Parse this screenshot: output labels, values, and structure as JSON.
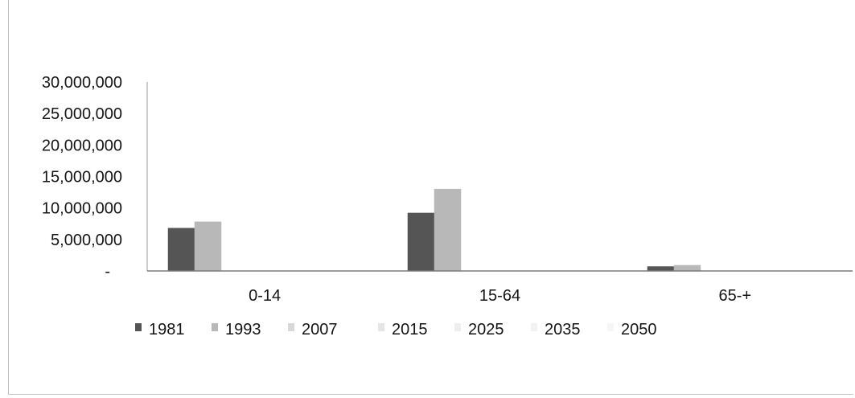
{
  "chart_data": {
    "type": "bar",
    "title": "",
    "xlabel": "",
    "ylabel": "",
    "categories": [
      "0-14",
      "15-64",
      "65-+"
    ],
    "ylim": [
      0,
      30000000
    ],
    "yticks": [
      0,
      5000000,
      10000000,
      15000000,
      20000000,
      25000000,
      30000000
    ],
    "ytick_labels": [
      "-",
      "5,000,000",
      "10,000,000",
      "15,000,000",
      "20,000,000",
      "25,000,000",
      "30,000,000"
    ],
    "legend_position": "bottom",
    "grid": false,
    "series": [
      {
        "name": "1981",
        "values": [
          6800000,
          9200000,
          700000
        ],
        "color": "#555555"
      },
      {
        "name": "1993",
        "values": [
          7800000,
          13000000,
          900000
        ],
        "color": "#b8b8b8"
      },
      {
        "name": "2007",
        "values": [
          null,
          null,
          null
        ],
        "color": "#d8d8d8"
      },
      {
        "name": "2015",
        "values": [
          null,
          null,
          null
        ],
        "color": "#e6e6e6"
      },
      {
        "name": "2025",
        "values": [
          null,
          null,
          null
        ],
        "color": "#eeeeee"
      },
      {
        "name": "2035",
        "values": [
          null,
          null,
          null
        ],
        "color": "#f2f2f2"
      },
      {
        "name": "2050",
        "values": [
          null,
          null,
          null
        ],
        "color": "#f6f6f6"
      }
    ]
  }
}
